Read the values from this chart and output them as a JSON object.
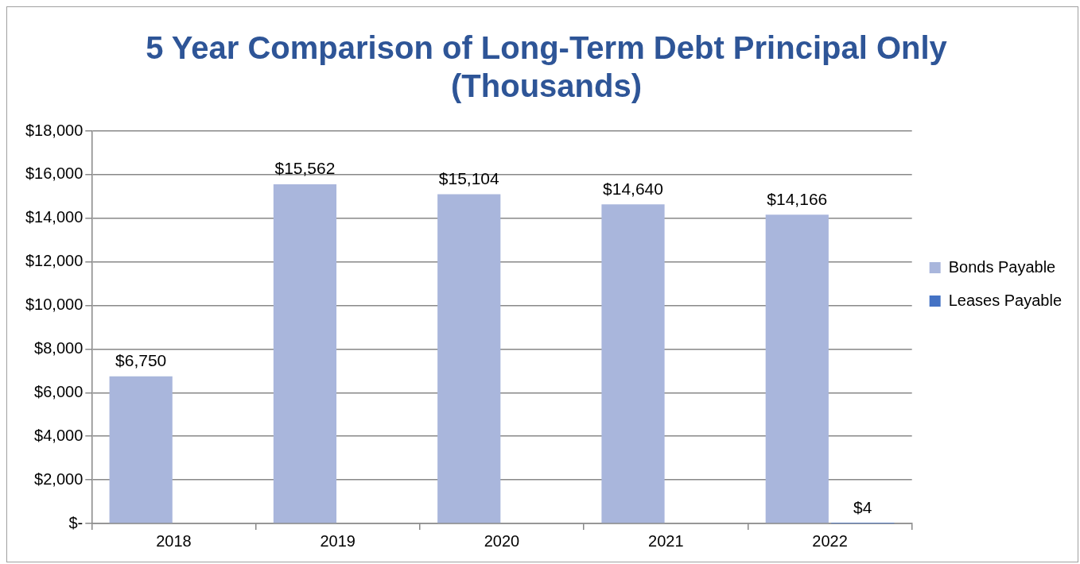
{
  "chart_data": {
    "type": "bar",
    "title": [
      "5 Year Comparison of Long-Term Debt Principal Only",
      "(Thousands)"
    ],
    "categories": [
      "2018",
      "2019",
      "2020",
      "2021",
      "2022"
    ],
    "series": [
      {
        "name": "Bonds Payable",
        "color": "#a9b6dc",
        "values": [
          6750,
          15562,
          15104,
          14640,
          14166
        ],
        "value_labels": [
          "$6,750",
          "$15,562",
          "$15,104",
          "$14,640",
          "$14,166"
        ]
      },
      {
        "name": "Leases Payable",
        "color": "#4472c4",
        "values": [
          null,
          null,
          null,
          null,
          4
        ],
        "value_labels": [
          null,
          null,
          null,
          null,
          "$4"
        ]
      }
    ],
    "ylim": [
      0,
      18000
    ],
    "yticks": [
      {
        "value": 0,
        "label": "$-"
      },
      {
        "value": 2000,
        "label": "$2,000"
      },
      {
        "value": 4000,
        "label": "$4,000"
      },
      {
        "value": 6000,
        "label": "$6,000"
      },
      {
        "value": 8000,
        "label": "$8,000"
      },
      {
        "value": 10000,
        "label": "$10,000"
      },
      {
        "value": 12000,
        "label": "$12,000"
      },
      {
        "value": 14000,
        "label": "$14,000"
      },
      {
        "value": 16000,
        "label": "$16,000"
      },
      {
        "value": 18000,
        "label": "$18,000"
      }
    ],
    "grid": "y",
    "legend": "right"
  }
}
